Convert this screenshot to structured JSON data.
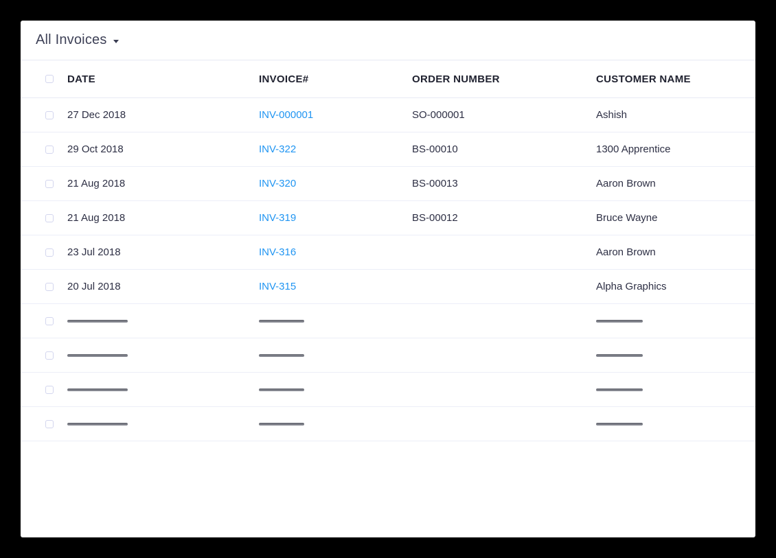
{
  "view_header": {
    "title": "All Invoices",
    "caret_icon": "chevron-down"
  },
  "colors": {
    "background": "#000000",
    "panel": "#ffffff",
    "link_blue": "#2095f2",
    "divider": "#eceef8",
    "header_text": "#202230",
    "body_text": "#2d2f44",
    "skeleton_bar": "#7a7c87",
    "checkbox_border": "#d3d6ee"
  },
  "table": {
    "columns": [
      {
        "label": "DATE"
      },
      {
        "label": "INVOICE#"
      },
      {
        "label": "ORDER NUMBER"
      },
      {
        "label": "CUSTOMER NAME"
      }
    ],
    "rows": [
      {
        "type": "data",
        "date": "27 Dec 2018",
        "invoice": "INV-000001",
        "order": "SO-000001",
        "customer": "Ashish"
      },
      {
        "type": "data",
        "date": "29 Oct 2018",
        "invoice": "INV-322",
        "order": "BS-00010",
        "customer": "1300 Apprentice"
      },
      {
        "type": "data",
        "date": "21 Aug 2018",
        "invoice": "INV-320",
        "order": "BS-00013",
        "customer": "Aaron Brown"
      },
      {
        "type": "data",
        "date": "21 Aug 2018",
        "invoice": "INV-319",
        "order": "BS-00012",
        "customer": "Bruce Wayne"
      },
      {
        "type": "data",
        "date": "23 Jul 2018",
        "invoice": "INV-316",
        "order": "",
        "customer": "Aaron Brown"
      },
      {
        "type": "data",
        "date": "20 Jul 2018",
        "invoice": "INV-315",
        "order": "",
        "customer": "Alpha Graphics"
      },
      {
        "type": "skeleton"
      },
      {
        "type": "skeleton"
      },
      {
        "type": "skeleton"
      },
      {
        "type": "skeleton"
      }
    ]
  }
}
